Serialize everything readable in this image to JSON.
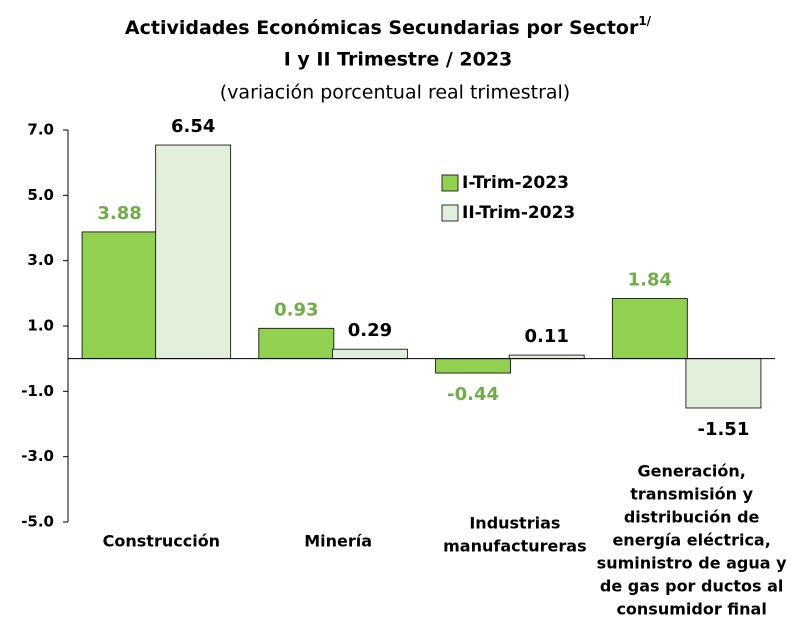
{
  "chart_data": {
    "type": "bar",
    "title": "Actividades Económicas Secundarias por Sector",
    "title_note": "1/",
    "title_line2": "I y II Trimestre / 2023",
    "subtitle": "(variación porcentual real trimestral)",
    "categories": [
      [
        "Construcción"
      ],
      [
        "Minería"
      ],
      [
        "Industrias",
        "manufactureras"
      ],
      [
        "Generación,",
        "transmisión y",
        "distribución de",
        "energía eléctrica,",
        "suministro de agua y",
        "de gas por ductos al",
        "consumidor final"
      ]
    ],
    "series": [
      {
        "name": "I-Trim-2023",
        "color": "#92d050",
        "label_color": "#70ad47",
        "values": [
          3.88,
          0.93,
          -0.44,
          1.84
        ]
      },
      {
        "name": "II-Trim-2023",
        "color": "#e2efda",
        "label_color": "#000000",
        "values": [
          6.54,
          0.29,
          0.11,
          -1.51
        ]
      }
    ],
    "ylim": [
      -5,
      7
    ],
    "yticks": [
      {
        "value": 7,
        "label": "7.0"
      },
      {
        "value": 5,
        "label": "5.0"
      },
      {
        "value": 3,
        "label": "3.0"
      },
      {
        "value": 1,
        "label": "1.0"
      },
      {
        "value": -1,
        "label": "-1.0"
      },
      {
        "value": -3,
        "label": "-3.0"
      },
      {
        "value": -5,
        "label": "-5.0"
      }
    ],
    "legend": "upper-center"
  }
}
